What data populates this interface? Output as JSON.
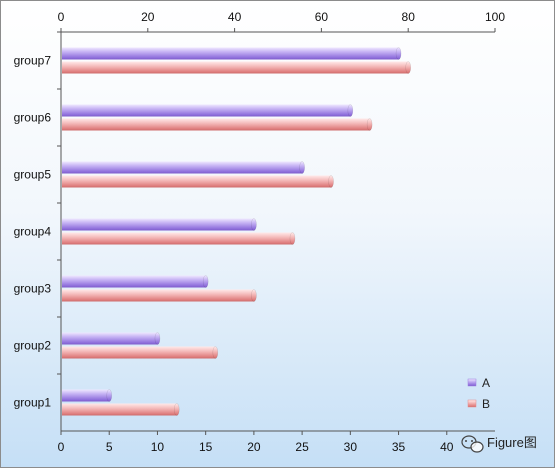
{
  "chart_data": {
    "type": "bar",
    "orientation": "horizontal",
    "categories": [
      "group1",
      "group2",
      "group3",
      "group4",
      "group5",
      "group6",
      "group7"
    ],
    "series": [
      {
        "name": "A",
        "color": "#9b7fe0",
        "values": [
          5,
          10,
          15,
          20,
          25,
          30,
          35
        ]
      },
      {
        "name": "B",
        "color": "#e58a8a",
        "values": [
          12,
          16,
          20,
          24,
          28,
          32,
          36
        ]
      }
    ],
    "x_bottom": {
      "range": [
        0,
        45
      ],
      "ticks": [
        0,
        5,
        10,
        15,
        20,
        25,
        30,
        35,
        40
      ]
    },
    "x_top": {
      "range": [
        0,
        100
      ],
      "ticks": [
        0,
        20,
        40,
        60,
        80,
        100
      ]
    },
    "legend_position": "bottom-right",
    "grid": false
  },
  "watermark": {
    "text": "Figure图",
    "icon": "wechat-icon"
  }
}
